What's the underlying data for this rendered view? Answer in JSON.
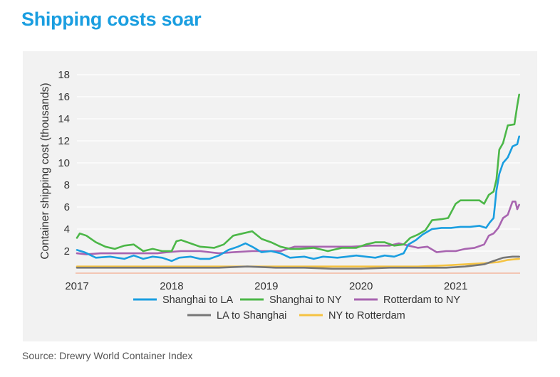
{
  "header": {
    "title": "Shipping costs soar"
  },
  "footer": {
    "source": "Source: Drewry World Container Index"
  },
  "chart_data": {
    "type": "line",
    "title": "Shipping costs soar",
    "ylabel": "Container shipping cost (thousands)",
    "xlabel": "",
    "xlim": [
      2017.0,
      2021.68
    ],
    "ylim": [
      0,
      18
    ],
    "yticks": [
      2,
      4,
      6,
      8,
      10,
      12,
      14,
      16,
      18
    ],
    "xticks": [
      "2017",
      "2018",
      "2019",
      "2020",
      "2021"
    ],
    "grid": "horizontal",
    "legend_position": "bottom",
    "series": [
      {
        "name": "Shanghai to LA",
        "color": "#1a9ee0",
        "points": [
          [
            2017.0,
            2.1
          ],
          [
            2017.08,
            1.9
          ],
          [
            2017.2,
            1.4
          ],
          [
            2017.35,
            1.5
          ],
          [
            2017.5,
            1.3
          ],
          [
            2017.6,
            1.6
          ],
          [
            2017.7,
            1.3
          ],
          [
            2017.8,
            1.5
          ],
          [
            2017.9,
            1.4
          ],
          [
            2018.0,
            1.1
          ],
          [
            2018.08,
            1.4
          ],
          [
            2018.2,
            1.5
          ],
          [
            2018.3,
            1.3
          ],
          [
            2018.4,
            1.3
          ],
          [
            2018.5,
            1.6
          ],
          [
            2018.6,
            2.1
          ],
          [
            2018.7,
            2.4
          ],
          [
            2018.78,
            2.7
          ],
          [
            2018.85,
            2.4
          ],
          [
            2018.95,
            1.9
          ],
          [
            2019.05,
            2.0
          ],
          [
            2019.15,
            1.8
          ],
          [
            2019.25,
            1.4
          ],
          [
            2019.4,
            1.5
          ],
          [
            2019.5,
            1.3
          ],
          [
            2019.6,
            1.5
          ],
          [
            2019.75,
            1.4
          ],
          [
            2019.85,
            1.5
          ],
          [
            2019.95,
            1.6
          ],
          [
            2020.05,
            1.5
          ],
          [
            2020.15,
            1.4
          ],
          [
            2020.25,
            1.6
          ],
          [
            2020.35,
            1.5
          ],
          [
            2020.45,
            1.8
          ],
          [
            2020.5,
            2.6
          ],
          [
            2020.58,
            3.0
          ],
          [
            2020.65,
            3.5
          ],
          [
            2020.75,
            4.0
          ],
          [
            2020.85,
            4.1
          ],
          [
            2020.95,
            4.1
          ],
          [
            2021.05,
            4.2
          ],
          [
            2021.15,
            4.2
          ],
          [
            2021.25,
            4.3
          ],
          [
            2021.32,
            4.1
          ],
          [
            2021.36,
            4.6
          ],
          [
            2021.4,
            5.0
          ],
          [
            2021.43,
            7.5
          ],
          [
            2021.46,
            9.0
          ],
          [
            2021.5,
            10.0
          ],
          [
            2021.55,
            10.5
          ],
          [
            2021.6,
            11.5
          ],
          [
            2021.65,
            11.7
          ],
          [
            2021.67,
            12.4
          ]
        ]
      },
      {
        "name": "Shanghai to NY",
        "color": "#4cb748",
        "points": [
          [
            2017.0,
            3.2
          ],
          [
            2017.03,
            3.6
          ],
          [
            2017.1,
            3.4
          ],
          [
            2017.2,
            2.8
          ],
          [
            2017.3,
            2.4
          ],
          [
            2017.4,
            2.2
          ],
          [
            2017.5,
            2.5
          ],
          [
            2017.6,
            2.6
          ],
          [
            2017.7,
            2.0
          ],
          [
            2017.8,
            2.2
          ],
          [
            2017.9,
            2.0
          ],
          [
            2018.0,
            2.0
          ],
          [
            2018.05,
            2.9
          ],
          [
            2018.1,
            3.0
          ],
          [
            2018.2,
            2.7
          ],
          [
            2018.3,
            2.4
          ],
          [
            2018.45,
            2.3
          ],
          [
            2018.55,
            2.6
          ],
          [
            2018.65,
            3.4
          ],
          [
            2018.75,
            3.6
          ],
          [
            2018.85,
            3.8
          ],
          [
            2018.95,
            3.1
          ],
          [
            2019.05,
            2.8
          ],
          [
            2019.15,
            2.4
          ],
          [
            2019.25,
            2.2
          ],
          [
            2019.35,
            2.2
          ],
          [
            2019.5,
            2.3
          ],
          [
            2019.65,
            2.0
          ],
          [
            2019.8,
            2.3
          ],
          [
            2019.95,
            2.3
          ],
          [
            2020.05,
            2.6
          ],
          [
            2020.15,
            2.8
          ],
          [
            2020.25,
            2.8
          ],
          [
            2020.35,
            2.5
          ],
          [
            2020.45,
            2.6
          ],
          [
            2020.52,
            3.2
          ],
          [
            2020.6,
            3.5
          ],
          [
            2020.68,
            3.9
          ],
          [
            2020.75,
            4.8
          ],
          [
            2020.85,
            4.9
          ],
          [
            2020.92,
            5.0
          ],
          [
            2021.0,
            6.3
          ],
          [
            2021.05,
            6.6
          ],
          [
            2021.15,
            6.6
          ],
          [
            2021.25,
            6.6
          ],
          [
            2021.3,
            6.3
          ],
          [
            2021.35,
            7.1
          ],
          [
            2021.4,
            7.4
          ],
          [
            2021.43,
            8.5
          ],
          [
            2021.46,
            11.2
          ],
          [
            2021.5,
            11.8
          ],
          [
            2021.55,
            13.4
          ],
          [
            2021.62,
            13.5
          ],
          [
            2021.65,
            15.2
          ],
          [
            2021.67,
            16.2
          ]
        ]
      },
      {
        "name": "Rotterdam to NY",
        "color": "#a864b0",
        "points": [
          [
            2017.0,
            1.8
          ],
          [
            2017.1,
            1.7
          ],
          [
            2017.25,
            1.8
          ],
          [
            2017.45,
            1.8
          ],
          [
            2017.65,
            1.8
          ],
          [
            2017.85,
            1.8
          ],
          [
            2017.95,
            1.9
          ],
          [
            2018.1,
            2.0
          ],
          [
            2018.3,
            2.0
          ],
          [
            2018.5,
            1.8
          ],
          [
            2018.65,
            1.9
          ],
          [
            2018.85,
            2.0
          ],
          [
            2019.0,
            2.0
          ],
          [
            2019.15,
            2.0
          ],
          [
            2019.3,
            2.4
          ],
          [
            2019.5,
            2.4
          ],
          [
            2019.7,
            2.4
          ],
          [
            2019.9,
            2.4
          ],
          [
            2020.1,
            2.5
          ],
          [
            2020.3,
            2.5
          ],
          [
            2020.4,
            2.7
          ],
          [
            2020.5,
            2.5
          ],
          [
            2020.6,
            2.3
          ],
          [
            2020.7,
            2.4
          ],
          [
            2020.8,
            1.9
          ],
          [
            2020.9,
            2.0
          ],
          [
            2021.0,
            2.0
          ],
          [
            2021.1,
            2.2
          ],
          [
            2021.2,
            2.3
          ],
          [
            2021.3,
            2.6
          ],
          [
            2021.35,
            3.4
          ],
          [
            2021.4,
            3.6
          ],
          [
            2021.45,
            4.1
          ],
          [
            2021.5,
            5.0
          ],
          [
            2021.55,
            5.3
          ],
          [
            2021.6,
            6.5
          ],
          [
            2021.63,
            6.5
          ],
          [
            2021.65,
            5.8
          ],
          [
            2021.67,
            6.2
          ]
        ]
      },
      {
        "name": "LA to Shanghai",
        "color": "#777777",
        "points": [
          [
            2017.0,
            0.5
          ],
          [
            2017.3,
            0.5
          ],
          [
            2017.6,
            0.5
          ],
          [
            2017.9,
            0.5
          ],
          [
            2018.2,
            0.5
          ],
          [
            2018.5,
            0.5
          ],
          [
            2018.8,
            0.6
          ],
          [
            2019.1,
            0.5
          ],
          [
            2019.4,
            0.5
          ],
          [
            2019.7,
            0.4
          ],
          [
            2020.0,
            0.4
          ],
          [
            2020.3,
            0.5
          ],
          [
            2020.6,
            0.5
          ],
          [
            2020.9,
            0.5
          ],
          [
            2021.1,
            0.6
          ],
          [
            2021.3,
            0.8
          ],
          [
            2021.4,
            1.1
          ],
          [
            2021.5,
            1.4
          ],
          [
            2021.6,
            1.5
          ],
          [
            2021.67,
            1.5
          ]
        ]
      },
      {
        "name": "NY to Rotterdam",
        "color": "#f5c342",
        "points": [
          [
            2017.0,
            0.6
          ],
          [
            2017.3,
            0.6
          ],
          [
            2017.6,
            0.6
          ],
          [
            2017.9,
            0.6
          ],
          [
            2018.2,
            0.6
          ],
          [
            2018.5,
            0.6
          ],
          [
            2018.8,
            0.6
          ],
          [
            2019.1,
            0.6
          ],
          [
            2019.4,
            0.6
          ],
          [
            2019.7,
            0.6
          ],
          [
            2020.0,
            0.6
          ],
          [
            2020.3,
            0.6
          ],
          [
            2020.6,
            0.6
          ],
          [
            2020.9,
            0.7
          ],
          [
            2021.1,
            0.8
          ],
          [
            2021.3,
            0.9
          ],
          [
            2021.45,
            1.0
          ],
          [
            2021.55,
            1.2
          ],
          [
            2021.67,
            1.3
          ]
        ]
      }
    ]
  }
}
